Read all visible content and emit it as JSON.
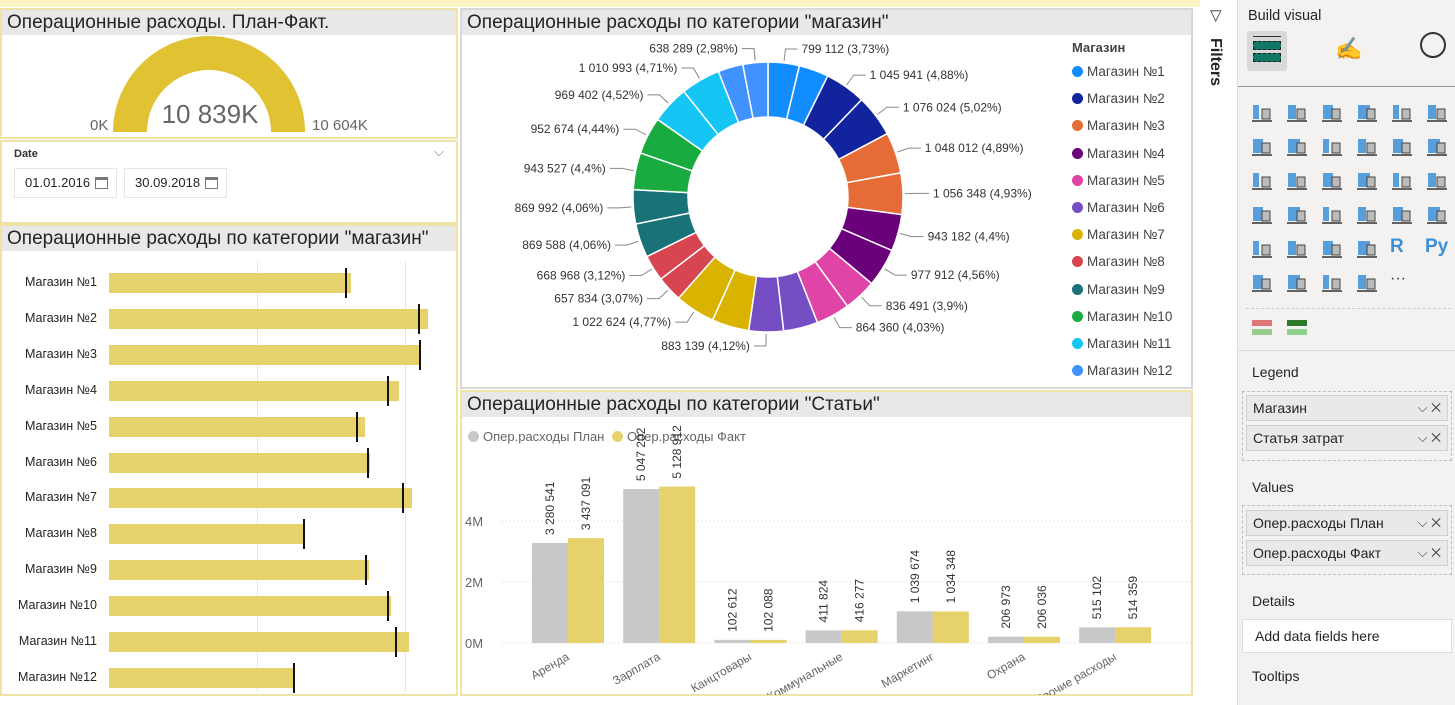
{
  "gauge": {
    "title": "Операционные расходы. План-Факт.",
    "value_label": "10 839K",
    "min_label": "0K",
    "max_label": "10 604K",
    "value": 10839,
    "max": 10604,
    "color": "#e1c233"
  },
  "date_slicer": {
    "label": "Date",
    "from": "01.01.2016",
    "to": "30.09.2018"
  },
  "bullet": {
    "title": "Операционные расходы по категории \"магазин\"",
    "bar_color": "#e7d16a",
    "unit": "M",
    "gridlines": [
      0.5,
      1.0
    ],
    "rows": [
      {
        "label": "Магазин №1",
        "fact": 0.818,
        "plan": 0.801
      },
      {
        "label": "Магазин №2",
        "fact": 1.078,
        "plan": 1.047
      },
      {
        "label": "Магазин №3",
        "fact": 1.054,
        "plan": 1.051
      },
      {
        "label": "Магазин №4",
        "fact": 0.98,
        "plan": 0.943
      },
      {
        "label": "Магазин №5",
        "fact": 0.865,
        "plan": 0.838
      },
      {
        "label": "Магазин №6",
        "fact": 0.882,
        "plan": 0.875
      },
      {
        "label": "Магазин №7",
        "fact": 1.024,
        "plan": 0.993
      },
      {
        "label": "Магазин №8",
        "fact": 0.655,
        "plan": 0.659
      },
      {
        "label": "Магазин №9",
        "fact": 0.878,
        "plan": 0.868
      },
      {
        "label": "Магазин №10",
        "fact": 0.953,
        "plan": 0.943
      },
      {
        "label": "Магазин №11",
        "fact": 1.014,
        "plan": 0.97
      },
      {
        "label": "Магазин №12",
        "fact": 0.625,
        "plan": 0.625
      }
    ]
  },
  "donut": {
    "title": "Операционные расходы по категории \"магазин\"",
    "legend_title": "Магазин",
    "stores": [
      {
        "name": "Магазин №1",
        "color": "#118dff"
      },
      {
        "name": "Магазин №2",
        "color": "#12239e"
      },
      {
        "name": "Магазин №3",
        "color": "#e66c37"
      },
      {
        "name": "Магазин №4",
        "color": "#6b007b"
      },
      {
        "name": "Магазин №5",
        "color": "#e044a7"
      },
      {
        "name": "Магазин №6",
        "color": "#744ec2"
      },
      {
        "name": "Магазин №7",
        "color": "#d9b300"
      },
      {
        "name": "Магазин №8",
        "color": "#d64550"
      },
      {
        "name": "Магазин №9",
        "color": "#197278"
      },
      {
        "name": "Магазин №10",
        "color": "#1aab40"
      },
      {
        "name": "Магазин №11",
        "color": "#15c6f4"
      },
      {
        "name": "Магазин №12",
        "color": "#4092ff"
      }
    ],
    "segments": [
      {
        "store": 0,
        "value": 799112,
        "label": "799 112 (3,73%)"
      },
      {
        "store": 0,
        "value": 760000,
        "label": null
      },
      {
        "store": 1,
        "value": 1045941,
        "label": "1 045 941 (4,88%)"
      },
      {
        "store": 1,
        "value": 1076024,
        "label": "1 076 024 (5,02%)"
      },
      {
        "store": 2,
        "value": 1048012,
        "label": "1 048 012 (4,89%)"
      },
      {
        "store": 2,
        "value": 1056348,
        "label": "1 056 348 (4,93%)"
      },
      {
        "store": 3,
        "value": 943182,
        "label": "943 182 (4,4%)"
      },
      {
        "store": 3,
        "value": 977912,
        "label": "977 912 (4,56%)"
      },
      {
        "store": 4,
        "value": 836491,
        "label": "836 491 (3,9%)"
      },
      {
        "store": 4,
        "value": 864360,
        "label": "864 360 (4,03%)"
      },
      {
        "store": 5,
        "value": 880000,
        "label": null
      },
      {
        "store": 5,
        "value": 883139,
        "label": "883 139 (4,12%)"
      },
      {
        "store": 6,
        "value": 950000,
        "label": null
      },
      {
        "store": 6,
        "value": 1022624,
        "label": "1 022 624 (4,77%)"
      },
      {
        "store": 7,
        "value": 657834,
        "label": "657 834 (3,07%)"
      },
      {
        "store": 7,
        "value": 668968,
        "label": "668 968 (3,12%)"
      },
      {
        "store": 8,
        "value": 869588,
        "label": "869 588 (4,06%)"
      },
      {
        "store": 8,
        "value": 869992,
        "label": "869 992 (4,06%)"
      },
      {
        "store": 9,
        "value": 943527,
        "label": "943 527 (4,4%)"
      },
      {
        "store": 9,
        "value": 952674,
        "label": "952 674 (4,44%)"
      },
      {
        "store": 10,
        "value": 969402,
        "label": "969 402 (4,52%)"
      },
      {
        "store": 10,
        "value": 1010993,
        "label": "1 010 993 (4,71%)"
      },
      {
        "store": 11,
        "value": 640000,
        "label": null
      },
      {
        "store": 11,
        "value": 638289,
        "label": "638 289 (2,98%)"
      }
    ]
  },
  "chart_data": {
    "type": "bar",
    "title": "Операционные расходы по категории \"Статьи\"",
    "categories": [
      "Аренда",
      "Зарплата",
      "Канцтовары",
      "Коммунальные",
      "Маркетинг",
      "Охрана",
      "Прочие расходы"
    ],
    "series": [
      {
        "name": "Опер.расходы План",
        "color": "#c8c8c8",
        "values": [
          3280541,
          5047202,
          102612,
          411824,
          1039674,
          206973,
          515102
        ],
        "labels": [
          "3 280 541",
          "5 047 202",
          "102 612",
          "411 824",
          "1 039 674",
          "206 973",
          "515 102"
        ]
      },
      {
        "name": "Опер.расходы Факт",
        "color": "#e7d16a",
        "values": [
          3437091,
          5128912,
          102088,
          416277,
          1034348,
          206036,
          514359
        ],
        "labels": [
          "3 437 091",
          "5 128 912",
          "102 088",
          "416 277",
          "1 034 348",
          "206 036",
          "514 359"
        ]
      }
    ],
    "yticks": [
      "0M",
      "2M",
      "4M"
    ],
    "ytick_values": [
      0,
      2000000,
      4000000
    ],
    "ylim": [
      0,
      5400000
    ],
    "legend": "top-left",
    "grid": true
  },
  "filters": {
    "label": "Filters"
  },
  "pane": {
    "title": "Build visual",
    "tabs": [
      "fields-wells-icon",
      "format-visual-icon",
      "analytics-icon"
    ],
    "visual_icons": [
      "stacked-bar-icon",
      "stacked-column-icon",
      "clustered-bar-icon",
      "clustered-column-icon",
      "100-bar-icon",
      "100-column-icon",
      "line-chart-icon",
      "area-chart-icon",
      "stacked-area-icon",
      "100-area-icon",
      "line-column-icon",
      "line-clustered-icon",
      "ribbon-chart-icon",
      "waterfall-icon",
      "funnel-icon",
      "scatter-icon",
      "pie-icon",
      "donut-icon",
      "treemap-icon",
      "map-icon",
      "filled-map-icon",
      "gauge-icon",
      "card-icon",
      "multirow-card-icon",
      "kpi-icon",
      "slicer-icon",
      "table-icon",
      "matrix-icon",
      "r-visual-icon",
      "python-visual-icon",
      "decomposition-tree-icon",
      "smart-narrative-icon",
      "key-influencers-icon",
      "azure-map-icon",
      "more-icon"
    ],
    "custom_icons": [
      "custom-visual-1-icon",
      "custom-visual-2-icon"
    ],
    "legend_label": "Legend",
    "legend_fields": [
      "Магазин",
      "Статья затрат"
    ],
    "values_label": "Values",
    "values_fields": [
      "Опер.расходы План",
      "Опер.расходы Факт"
    ],
    "details_label": "Details",
    "details_placeholder": "Add data fields here",
    "tooltips_label": "Tooltips"
  }
}
